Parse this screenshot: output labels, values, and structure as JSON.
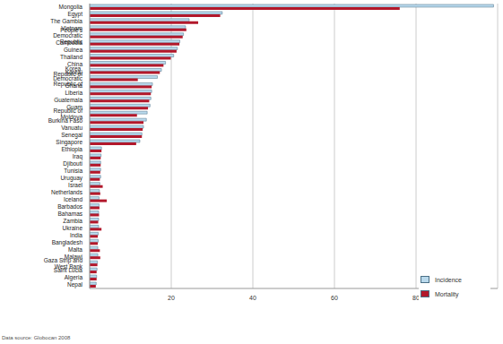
{
  "chart_data": {
    "type": "bar",
    "orientation": "horizontal",
    "grid": true,
    "legend": "lower right",
    "annotations": [
      "Data source: Globocan 2008"
    ],
    "categories": [
      "Mongolia",
      "Egypt",
      "The Gambia",
      "Vietnam",
      "People's Democratic Republic",
      "Cambodia",
      "Guinea",
      "Thailand",
      "China",
      "Korea, Republic of",
      "Korea, Democratic Republic of",
      "Ghana",
      "Liberia",
      "Guatemala",
      "Guam",
      "Republic of Moldova",
      "Burkina Faso",
      "Vanuatu",
      "Senegal",
      "Singapore",
      "Ethiopia",
      "Iraq",
      "Djibouti",
      "Tunisia",
      "Uruguay",
      "Israel",
      "Netherlands",
      "Iceland",
      "Barbados",
      "Bahamas",
      "Zambia",
      "Ukraine",
      "India",
      "Bangladesh",
      "Malta",
      "Malawi",
      "Gaza Strip and West Bank",
      "Saint Lucia",
      "Algeria",
      "Nepal"
    ],
    "series": [
      {
        "name": "Incidence",
        "color": "#b9d9ec",
        "values": [
          99,
          32.5,
          24.4,
          23.5,
          23,
          22.1,
          21.5,
          20.6,
          18.6,
          17.6,
          16.6,
          15.4,
          15.2,
          15,
          14.8,
          14.1,
          13.9,
          13.2,
          12.8,
          12.3,
          2.9,
          2.8,
          2.7,
          2.7,
          2.7,
          2.5,
          2.4,
          2.3,
          2.3,
          2.2,
          2.2,
          2.2,
          2.1,
          2.1,
          2,
          2,
          1.9,
          1.8,
          1.7,
          1.6
        ]
      },
      {
        "name": "Mortality",
        "color": "#b2182b",
        "values": [
          76,
          32,
          26.6,
          23.7,
          22.8,
          22,
          21.3,
          19.9,
          18.1,
          17.2,
          11.8,
          15.2,
          15,
          14.6,
          14.3,
          11.6,
          13.2,
          13,
          12.8,
          11.4,
          2.9,
          2.7,
          2.7,
          2.6,
          2.5,
          3.2,
          2.6,
          4.2,
          2.4,
          2.3,
          2.1,
          2.9,
          2,
          2,
          2.5,
          2.6,
          1.9,
          1.7,
          1.7,
          1.5
        ]
      }
    ],
    "xlim": [
      0,
      100
    ],
    "xticks": [
      20,
      40,
      60,
      80
    ]
  }
}
